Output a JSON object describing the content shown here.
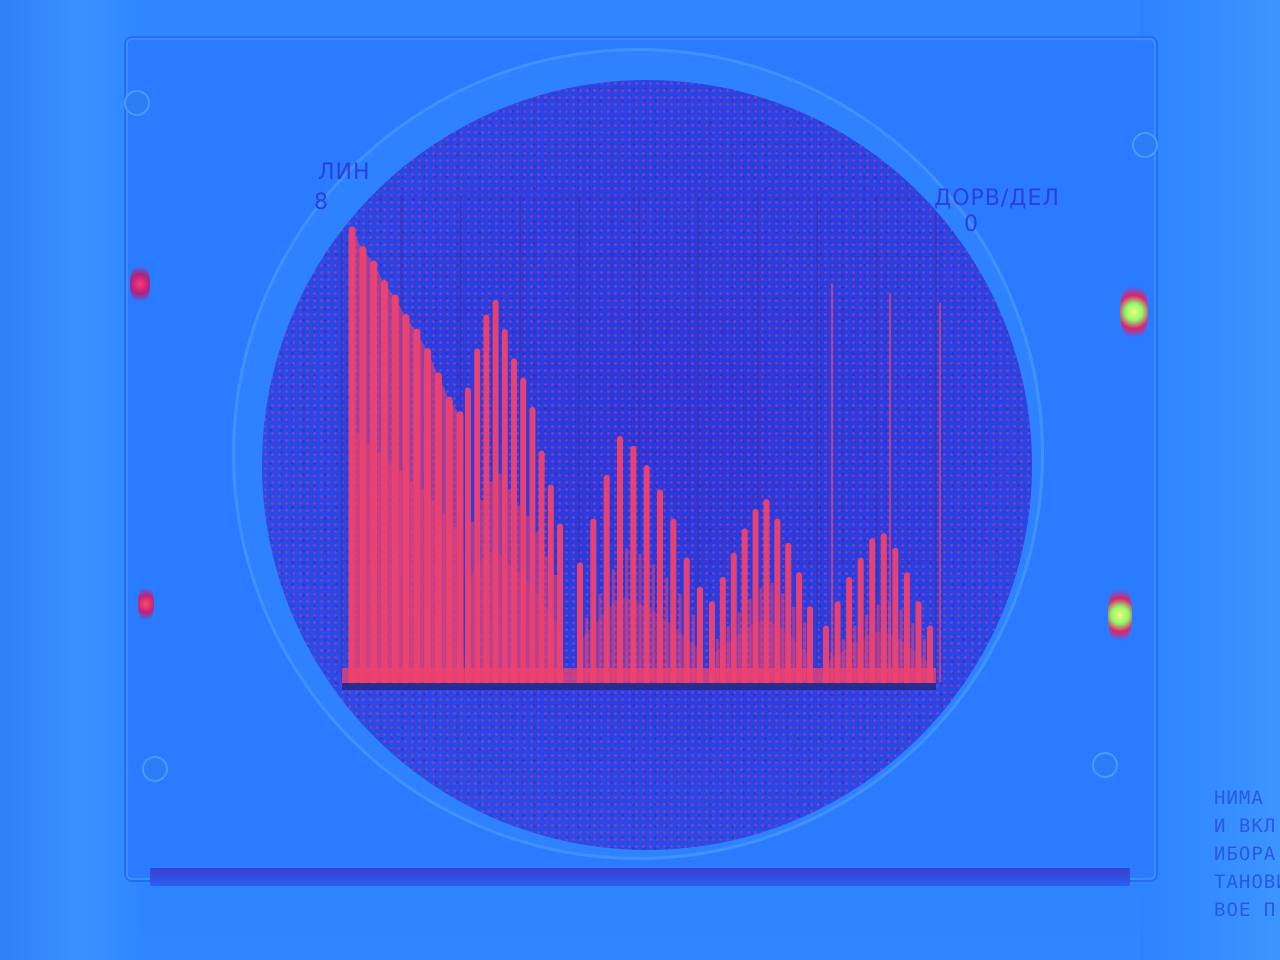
{
  "scale_labels": {
    "top_left": "ЛИН",
    "top_left_value": "8",
    "top_right": "ДОРВ/ДЕЛ",
    "top_right_value": "0"
  },
  "side_text": [
    "НИМА",
    "И ВКЛ",
    "ИБОРА",
    "ТАНОВИ",
    "ВОЕ П"
  ],
  "colors": {
    "background": "#2f86ff",
    "screen": "#2c37d8",
    "trace": "#f0426e",
    "grid": "#3b2fb0"
  },
  "spectrum": {
    "groups": [
      [
        0.93,
        0.89,
        0.86,
        0.82,
        0.79,
        0.75,
        0.72,
        0.68,
        0.63,
        0.58,
        0.55
      ],
      [
        0.6,
        0.68,
        0.75,
        0.78,
        0.72,
        0.66,
        0.62,
        0.56,
        0.47,
        0.4,
        0.32
      ],
      [
        0.24,
        0.33,
        0.42,
        0.5,
        0.48,
        0.44,
        0.39,
        0.33,
        0.25,
        0.19
      ],
      [
        0.16,
        0.21,
        0.26,
        0.31,
        0.35,
        0.37,
        0.33,
        0.28,
        0.22,
        0.15
      ],
      [
        0.11,
        0.16,
        0.21,
        0.25,
        0.29,
        0.3,
        0.27,
        0.22,
        0.16,
        0.11
      ]
    ]
  }
}
